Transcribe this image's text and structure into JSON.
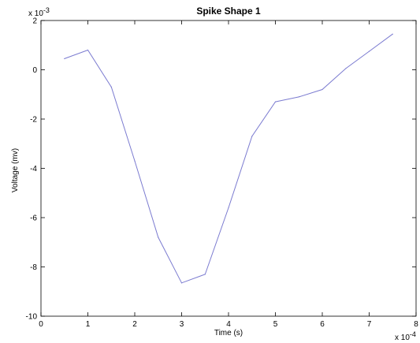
{
  "chart_data": {
    "type": "line",
    "title": "Spike Shape 1",
    "xlabel": "Time (s)",
    "ylabel": "Voltage (mv)",
    "x_multiplier_label": "x 10",
    "x_multiplier_exp": "-4",
    "y_multiplier_label": "x 10",
    "y_multiplier_exp": "-3",
    "xlim": [
      0,
      8
    ],
    "ylim": [
      -10,
      2
    ],
    "xticks": [
      0,
      1,
      2,
      3,
      4,
      5,
      6,
      7,
      8
    ],
    "xtick_labels": [
      "0",
      "1",
      "2",
      "3",
      "4",
      "5",
      "6",
      "7",
      "8"
    ],
    "yticks": [
      -10,
      -8,
      -6,
      -4,
      -2,
      0,
      2
    ],
    "ytick_labels": [
      "-10",
      "-8",
      "-6",
      "-4",
      "-2",
      "0",
      "2"
    ],
    "grid": false,
    "line_color": "#7b7bd0",
    "series": [
      {
        "x": [
          0.5,
          1.0,
          1.5,
          2.0,
          2.5,
          3.0,
          3.5,
          4.0,
          4.5,
          5.0,
          5.5,
          6.0,
          6.5,
          7.0,
          7.5
        ],
        "y": [
          0.45,
          0.8,
          -0.7,
          -3.7,
          -6.8,
          -8.65,
          -8.3,
          -5.6,
          -2.7,
          -1.3,
          -1.1,
          -0.8,
          0.05,
          0.75,
          1.45
        ]
      }
    ]
  }
}
